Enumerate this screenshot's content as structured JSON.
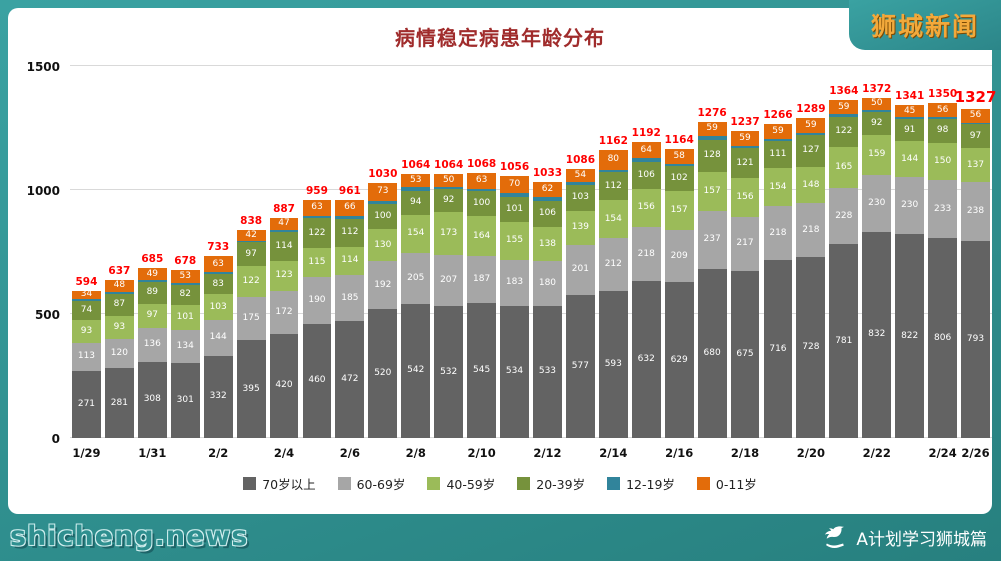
{
  "page": {
    "logo": "狮城新闻",
    "watermark": "shicheng.news",
    "credit": "A计划学习狮城篇"
  },
  "colors": {
    "background": "#2e8f8f",
    "panel": "#ffffff",
    "title": "#a02c2c",
    "total_label": "#ff0000",
    "logo": "#f2a93b"
  },
  "chart_data": {
    "type": "bar",
    "stacked": true,
    "title": "病情稳定病患年龄分布",
    "legend_position": "bottom",
    "grid": true,
    "ylim": [
      0,
      1500
    ],
    "yticks": [
      0,
      500,
      1000,
      1500
    ],
    "x": [
      "1/29",
      "1/30",
      "1/31",
      "2/1",
      "2/2",
      "2/3",
      "2/4",
      "2/5",
      "2/6",
      "2/7",
      "2/8",
      "2/9",
      "2/10",
      "2/11",
      "2/12",
      "2/13",
      "2/14",
      "2/15",
      "2/16",
      "2/17",
      "2/18",
      "2/19",
      "2/20",
      "2/21",
      "2/22",
      "2/23",
      "2/24",
      "2/25"
    ],
    "x_tick_labels": [
      "1/29",
      "1/31",
      "2/2",
      "2/4",
      "2/6",
      "2/8",
      "2/10",
      "2/12",
      "2/14",
      "2/16",
      "2/18",
      "2/20",
      "2/22",
      "2/24",
      "2/26"
    ],
    "series": [
      {
        "name": "70岁以上",
        "color": "#636363",
        "values": [
          271,
          281,
          308,
          301,
          332,
          395,
          420,
          460,
          472,
          520,
          542,
          532,
          545,
          534,
          533,
          577,
          593,
          632,
          629,
          680,
          675,
          716,
          728,
          781,
          832,
          822,
          806,
          793
        ]
      },
      {
        "name": "60-69岁",
        "color": "#a6a6a6",
        "values": [
          113,
          120,
          136,
          134,
          144,
          175,
          172,
          190,
          185,
          192,
          205,
          207,
          187,
          183,
          180,
          201,
          212,
          218,
          209,
          237,
          217,
          218,
          218,
          228,
          230,
          230,
          233,
          238
        ]
      },
      {
        "name": "40-59岁",
        "color": "#9bbb59",
        "values": [
          93,
          93,
          97,
          101,
          103,
          122,
          123,
          115,
          114,
          130,
          154,
          173,
          164,
          155,
          138,
          139,
          154,
          156,
          157,
          157,
          156,
          154,
          148,
          165,
          159,
          144,
          150,
          137
        ]
      },
      {
        "name": "20-39岁",
        "color": "#76923c",
        "values": [
          74,
          87,
          89,
          82,
          83,
          97,
          114,
          122,
          112,
          100,
          94,
          92,
          100,
          101,
          106,
          103,
          112,
          106,
          102,
          128,
          121,
          111,
          127,
          122,
          92,
          91,
          98,
          97
        ]
      },
      {
        "name": "12-19岁",
        "color": "#31849b",
        "values": [
          9,
          8,
          6,
          7,
          8,
          7,
          11,
          9,
          12,
          15,
          16,
          10,
          9,
          13,
          14,
          12,
          11,
          16,
          9,
          15,
          9,
          8,
          9,
          9,
          9,
          9,
          7,
          6
        ]
      },
      {
        "name": "0-11岁",
        "color": "#e36c0a",
        "values": [
          34,
          48,
          49,
          53,
          63,
          42,
          47,
          63,
          66,
          73,
          53,
          50,
          63,
          70,
          62,
          54,
          80,
          64,
          58,
          59,
          59,
          59,
          59,
          59,
          50,
          45,
          56,
          56
        ]
      }
    ],
    "totals": [
      594,
      637,
      685,
      678,
      733,
      838,
      887,
      959,
      961,
      1030,
      1064,
      1064,
      1068,
      1056,
      1033,
      1086,
      1162,
      1192,
      1164,
      1276,
      1237,
      1266,
      1289,
      1364,
      1372,
      1341,
      1350,
      1327
    ]
  }
}
